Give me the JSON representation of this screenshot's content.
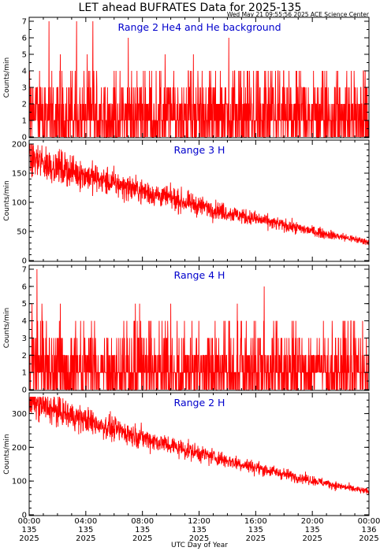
{
  "header": {
    "title": "LET ahead BUFRATES Data for 2025-135",
    "timestamp": "Wed May 21 09:55:56 2025 ACE Science Center"
  },
  "colors": {
    "series": "#ff0000",
    "label": "#0000cc",
    "axis": "#000000",
    "background": "#ffffff"
  },
  "chart_data": {
    "type": "line",
    "xlabel": "UTC Day of Year",
    "x_ticks": [
      {
        "time": "00:00",
        "doy": "135",
        "year": "2025"
      },
      {
        "time": "04:00",
        "doy": "135",
        "year": "2025"
      },
      {
        "time": "08:00",
        "doy": "135",
        "year": "2025"
      },
      {
        "time": "12:00",
        "doy": "135",
        "year": "2025"
      },
      {
        "time": "16:00",
        "doy": "135",
        "year": "2025"
      },
      {
        "time": "20:00",
        "doy": "135",
        "year": "2025"
      },
      {
        "time": "00:00",
        "doy": "136",
        "year": "2025"
      }
    ],
    "xlim_hours": [
      0,
      24
    ],
    "panels": [
      {
        "label": "Range 2 He4 and He background",
        "ylabel": "Counts/min",
        "ylim": [
          0,
          7
        ],
        "yticks": [
          0,
          1,
          2,
          3,
          4,
          5,
          6,
          7
        ],
        "trend": {
          "kind": "counts",
          "mean": 1.4,
          "spikes": [
            {
              "hour": 1.4,
              "value": 7
            },
            {
              "hour": 3.35,
              "value": 7
            },
            {
              "hour": 4.5,
              "value": 7
            },
            {
              "hour": 7.0,
              "value": 6
            },
            {
              "hour": 14.1,
              "value": 6
            },
            {
              "hour": 11.6,
              "value": 5
            },
            {
              "hour": 2.2,
              "value": 5
            },
            {
              "hour": 4.1,
              "value": 5
            },
            {
              "hour": 9.6,
              "value": 5
            }
          ]
        }
      },
      {
        "label": "Range 3 H",
        "ylabel": "Counts/min",
        "ylim": [
          0,
          200
        ],
        "yticks": [
          0,
          50,
          100,
          150,
          200
        ],
        "trend": {
          "kind": "decay",
          "start": 175,
          "end": 32,
          "curve": 0.75,
          "noise": 0.09
        }
      },
      {
        "label": "Range 4 H",
        "ylabel": "Counts/min",
        "ylim": [
          0,
          7
        ],
        "yticks": [
          0,
          1,
          2,
          3,
          4,
          5,
          6,
          7
        ],
        "trend": {
          "kind": "counts",
          "mean": 1.3,
          "spikes": [
            {
              "hour": 0.55,
              "value": 7
            },
            {
              "hour": 16.6,
              "value": 6
            },
            {
              "hour": 0.2,
              "value": 5
            },
            {
              "hour": 0.9,
              "value": 5
            },
            {
              "hour": 2.2,
              "value": 5
            },
            {
              "hour": 7.5,
              "value": 5
            },
            {
              "hour": 7.8,
              "value": 5
            },
            {
              "hour": 10.0,
              "value": 5
            },
            {
              "hour": 14.7,
              "value": 5
            }
          ]
        }
      },
      {
        "label": "Range 2 H",
        "ylabel": "Counts/min",
        "ylim": [
          0,
          350
        ],
        "yticks": [
          0,
          100,
          200,
          300
        ],
        "trend": {
          "kind": "decay",
          "start": 335,
          "end": 68,
          "curve": 0.8,
          "noise": 0.07
        }
      }
    ]
  }
}
